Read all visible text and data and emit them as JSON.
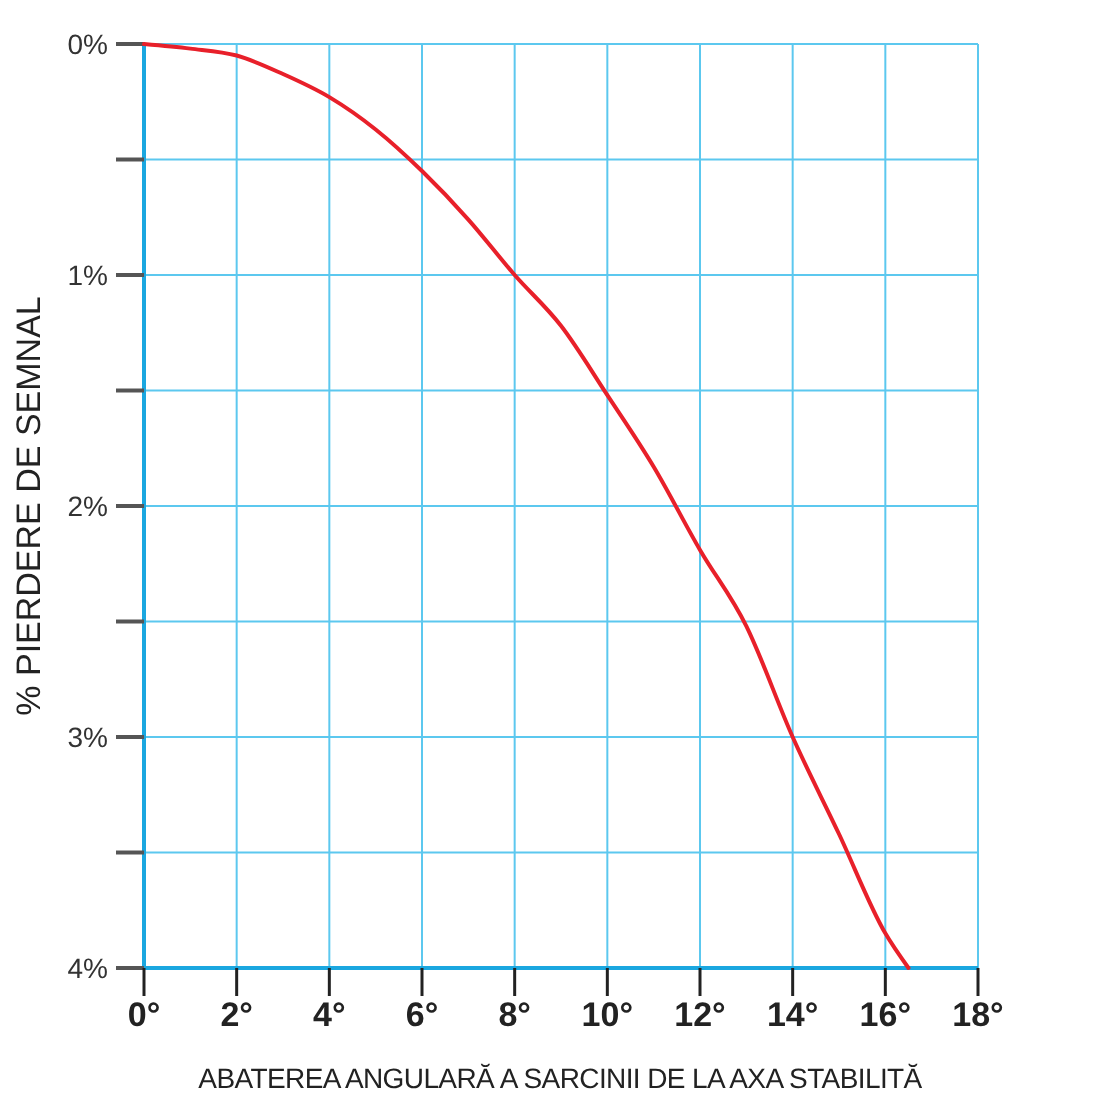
{
  "chart_data": {
    "type": "line",
    "xlabel": "ABATEREA ANGULARĂ A SARCINII DE LA AXA STABILITĂ",
    "ylabel": "% PIERDERE DE SEMNAL",
    "x": [
      0,
      1,
      2,
      3,
      4,
      5,
      6,
      7,
      8,
      9,
      10,
      11,
      12,
      13,
      14,
      15,
      16,
      16.5
    ],
    "series": [
      {
        "color": "#e8202a",
        "values": [
          0,
          0.02,
          0.05,
          0.13,
          0.23,
          0.37,
          0.55,
          0.76,
          1.0,
          1.22,
          1.52,
          1.83,
          2.19,
          2.52,
          3.0,
          3.42,
          3.85,
          4.0
        ]
      }
    ],
    "xlim": [
      0,
      18
    ],
    "ylim": [
      4,
      0
    ],
    "xticks": [
      {
        "value": 0,
        "label": "0°"
      },
      {
        "value": 2,
        "label": "2°"
      },
      {
        "value": 4,
        "label": "4°"
      },
      {
        "value": 6,
        "label": "6°"
      },
      {
        "value": 8,
        "label": "8°"
      },
      {
        "value": 10,
        "label": "10°"
      },
      {
        "value": 12,
        "label": "12°"
      },
      {
        "value": 14,
        "label": "14°"
      },
      {
        "value": 16,
        "label": "16°"
      },
      {
        "value": 18,
        "label": "18°"
      }
    ],
    "yticks": [
      {
        "value": 0,
        "label": "0%"
      },
      {
        "value": 0.5,
        "label": null
      },
      {
        "value": 1,
        "label": "1%"
      },
      {
        "value": 1.5,
        "label": null
      },
      {
        "value": 2,
        "label": "2%"
      },
      {
        "value": 2.5,
        "label": null
      },
      {
        "value": 3,
        "label": "3%"
      },
      {
        "value": 3.5,
        "label": null
      },
      {
        "value": 4,
        "label": "4%"
      }
    ],
    "grid": true,
    "marker": "none",
    "line_style": "solid"
  }
}
